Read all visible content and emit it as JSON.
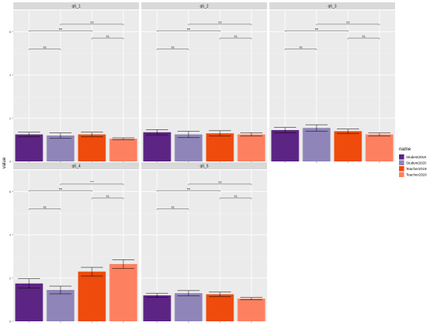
{
  "chart_data": {
    "type": "bar",
    "ylabel": "value",
    "ylim": [
      0,
      7
    ],
    "yticks": [
      0,
      2,
      4,
      6
    ],
    "categories": [
      "Student2019",
      "Student2020",
      "Teacher2019",
      "Teacher2020"
    ],
    "colors": [
      "#5c2483",
      "#8f85b8",
      "#ee4b0c",
      "#fd8060"
    ],
    "panel_background": "#ebebeb",
    "grid": "on",
    "legend": {
      "title": "name",
      "position": "right",
      "items": [
        "Student2019",
        "Student2020",
        "Teacher2019",
        "Teacher2020"
      ]
    },
    "panels": [
      {
        "title": "q6_1",
        "values": [
          1.25,
          1.2,
          1.25,
          1.05
        ],
        "errors": [
          0.1,
          0.12,
          0.1,
          0.04
        ],
        "comparisons": [
          {
            "from": 1,
            "to": 2,
            "label": "ns",
            "y": 5.2
          },
          {
            "from": 1,
            "to": 3,
            "label": "ns",
            "y": 6.05
          },
          {
            "from": 2,
            "to": 4,
            "label": "ns",
            "y": 6.35
          },
          {
            "from": 3,
            "to": 4,
            "label": "ns",
            "y": 5.7
          }
        ]
      },
      {
        "title": "q6_2",
        "values": [
          1.35,
          1.25,
          1.3,
          1.25
        ],
        "errors": [
          0.12,
          0.15,
          0.12,
          0.08
        ],
        "comparisons": [
          {
            "from": 1,
            "to": 2,
            "label": "ns",
            "y": 5.2
          },
          {
            "from": 1,
            "to": 3,
            "label": "ns",
            "y": 6.05
          },
          {
            "from": 2,
            "to": 4,
            "label": "ns",
            "y": 6.35
          },
          {
            "from": 3,
            "to": 4,
            "label": "ns",
            "y": 5.7
          }
        ]
      },
      {
        "title": "q6_3",
        "values": [
          1.45,
          1.55,
          1.4,
          1.25
        ],
        "errors": [
          0.12,
          0.15,
          0.1,
          0.07
        ],
        "comparisons": [
          {
            "from": 1,
            "to": 2,
            "label": "ns",
            "y": 5.2
          },
          {
            "from": 1,
            "to": 3,
            "label": "ns",
            "y": 6.05
          },
          {
            "from": 2,
            "to": 4,
            "label": "ns",
            "y": 6.35
          },
          {
            "from": 3,
            "to": 4,
            "label": "ns",
            "y": 5.7
          }
        ]
      },
      {
        "title": "q6_4",
        "values": [
          1.75,
          1.45,
          2.3,
          2.65
        ],
        "errors": [
          0.22,
          0.18,
          0.2,
          0.2
        ],
        "comparisons": [
          {
            "from": 1,
            "to": 2,
            "label": "ns",
            "y": 5.2
          },
          {
            "from": 1,
            "to": 3,
            "label": "ns",
            "y": 6.05
          },
          {
            "from": 2,
            "to": 4,
            "label": "***",
            "y": 6.35
          },
          {
            "from": 3,
            "to": 4,
            "label": "ns",
            "y": 5.7
          }
        ]
      },
      {
        "title": "q6_5",
        "values": [
          1.2,
          1.3,
          1.25,
          1.05
        ],
        "errors": [
          0.1,
          0.12,
          0.1,
          0.05
        ],
        "comparisons": [
          {
            "from": 1,
            "to": 2,
            "label": "ns",
            "y": 5.2
          },
          {
            "from": 1,
            "to": 3,
            "label": "ns",
            "y": 6.05
          },
          {
            "from": 2,
            "to": 4,
            "label": "ns",
            "y": 6.35
          },
          {
            "from": 3,
            "to": 4,
            "label": "ns",
            "y": 5.7
          }
        ]
      }
    ]
  }
}
